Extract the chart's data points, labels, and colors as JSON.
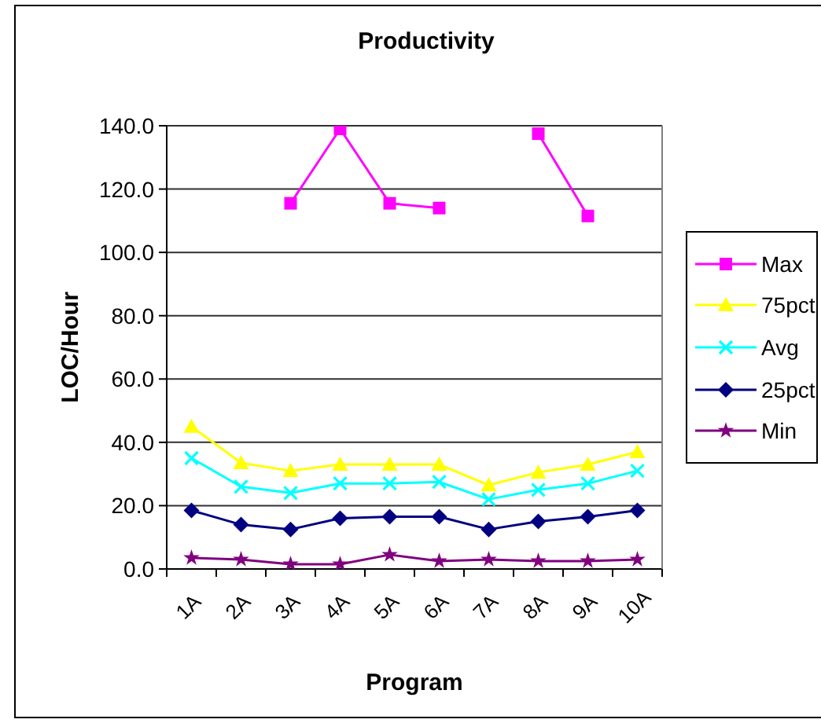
{
  "chart_data": {
    "type": "line",
    "title": "Productivity",
    "xlabel": "Program",
    "ylabel": "LOC/Hour",
    "categories": [
      "1A",
      "2A",
      "3A",
      "4A",
      "5A",
      "6A",
      "7A",
      "8A",
      "9A",
      "10A"
    ],
    "series": [
      {
        "name": "Max",
        "color": "#ff00ff",
        "marker": "square",
        "values": [
          null,
          null,
          115.5,
          139,
          115.5,
          114,
          null,
          137.5,
          111.5,
          null
        ]
      },
      {
        "name": "75pct",
        "color": "#ffff00",
        "marker": "triangle",
        "values": [
          45,
          33.5,
          31,
          33,
          33,
          33,
          26.5,
          30.5,
          33,
          37
        ]
      },
      {
        "name": "Avg",
        "color": "#00ffff",
        "marker": "cross",
        "values": [
          35,
          26,
          24,
          27,
          27,
          27.5,
          22,
          25,
          27,
          31
        ]
      },
      {
        "name": "25pct",
        "color": "#000080",
        "marker": "diamond",
        "values": [
          18.5,
          14,
          12.5,
          16,
          16.5,
          16.5,
          12.5,
          15,
          16.5,
          18.5
        ]
      },
      {
        "name": "Min",
        "color": "#800080",
        "marker": "star",
        "values": [
          3.5,
          3,
          1.5,
          1.5,
          4.5,
          2.5,
          3,
          2.5,
          2.5,
          3
        ]
      }
    ],
    "ylim": [
      0,
      140
    ],
    "yticks": [
      {
        "value": 0,
        "label": "0.0"
      },
      {
        "value": 20,
        "label": "20.0"
      },
      {
        "value": 40,
        "label": "40.0"
      },
      {
        "value": 60,
        "label": "60.0"
      },
      {
        "value": 80,
        "label": "80.0"
      },
      {
        "value": 100,
        "label": "100.0"
      },
      {
        "value": 120,
        "label": "120.0"
      },
      {
        "value": 140,
        "label": "140.0"
      }
    ],
    "grid": "y",
    "legend": "right"
  }
}
